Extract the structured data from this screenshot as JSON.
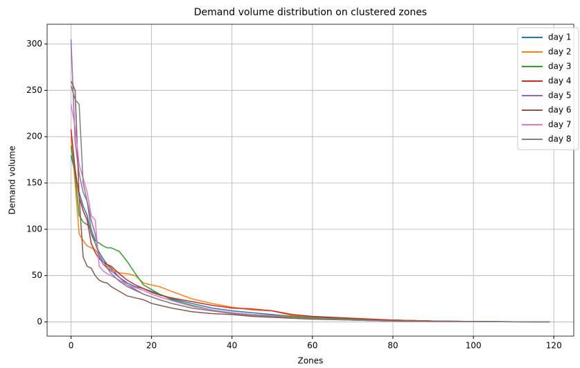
{
  "chart_data": {
    "type": "line",
    "title": "Demand volume distribution on clustered zones",
    "xlabel": "Zones",
    "ylabel": "Demand volume",
    "x": [
      0,
      1,
      2,
      3,
      4,
      5,
      6,
      7,
      8,
      9,
      10,
      12,
      14,
      16,
      18,
      20,
      22,
      25,
      30,
      35,
      40,
      45,
      50,
      55,
      60,
      70,
      80,
      90,
      100,
      119
    ],
    "series": [
      {
        "name": "day 1",
        "color": "#1f77b4",
        "values": [
          180,
          160,
          140,
          125,
          115,
          95,
          85,
          75,
          68,
          62,
          58,
          48,
          42,
          38,
          36,
          33,
          30,
          25,
          20,
          15,
          12,
          10,
          8,
          6,
          5,
          3,
          2,
          1,
          0.5,
          0
        ]
      },
      {
        "name": "day 2",
        "color": "#ff7f0e",
        "values": [
          200,
          150,
          95,
          88,
          82,
          80,
          78,
          72,
          65,
          60,
          56,
          53,
          52,
          50,
          42,
          40,
          38,
          33,
          25,
          20,
          16,
          13,
          12,
          7,
          5,
          3,
          2,
          1,
          0.5,
          0
        ]
      },
      {
        "name": "day 3",
        "color": "#2ca02c",
        "values": [
          190,
          160,
          115,
          108,
          105,
          100,
          88,
          85,
          82,
          80,
          80,
          76,
          65,
          52,
          40,
          35,
          30,
          24,
          18,
          13,
          10,
          8,
          7,
          6,
          5,
          3,
          2,
          1,
          0.5,
          0
        ]
      },
      {
        "name": "day 4",
        "color": "#d62728",
        "values": [
          208,
          165,
          135,
          120,
          110,
          85,
          75,
          68,
          65,
          62,
          60,
          52,
          45,
          40,
          36,
          32,
          29,
          26,
          22,
          18,
          15,
          14,
          12,
          8,
          6,
          4,
          2,
          1,
          0.5,
          0
        ]
      },
      {
        "name": "day 5",
        "color": "#9467bd",
        "values": [
          305,
          195,
          160,
          140,
          130,
          110,
          95,
          70,
          62,
          58,
          55,
          48,
          40,
          35,
          30,
          27,
          24,
          20,
          15,
          12,
          10,
          8,
          6,
          5,
          4,
          2,
          1,
          0.5,
          0.3,
          0
        ]
      },
      {
        "name": "day 6",
        "color": "#8c564b",
        "values": [
          260,
          250,
          135,
          70,
          60,
          58,
          50,
          45,
          43,
          42,
          38,
          33,
          28,
          26,
          24,
          20,
          18,
          15,
          11,
          9,
          8,
          6,
          5,
          4,
          3,
          2,
          1,
          0.5,
          0.3,
          0
        ]
      },
      {
        "name": "day 7",
        "color": "#e377c2",
        "values": [
          235,
          210,
          170,
          155,
          140,
          115,
          110,
          60,
          55,
          52,
          50,
          45,
          40,
          37,
          34,
          30,
          27,
          23,
          17,
          13,
          10,
          8,
          7,
          5,
          4,
          2,
          1,
          0.5,
          0.3,
          0
        ]
      },
      {
        "name": "day 8",
        "color": "#7f7f7f",
        "values": [
          255,
          240,
          235,
          150,
          130,
          100,
          85,
          72,
          65,
          58,
          52,
          44,
          38,
          34,
          30,
          27,
          24,
          20,
          15,
          12,
          9,
          7,
          6,
          5,
          4,
          2,
          1,
          0.5,
          0.3,
          0
        ]
      }
    ],
    "xlim": [
      -5.95,
      124.95
    ],
    "ylim": [
      -15.3,
      321.3
    ],
    "xticks": [
      0,
      20,
      40,
      60,
      80,
      100,
      120
    ],
    "yticks": [
      0,
      50,
      100,
      150,
      200,
      250,
      300
    ],
    "grid": true,
    "legend": "upper right"
  }
}
